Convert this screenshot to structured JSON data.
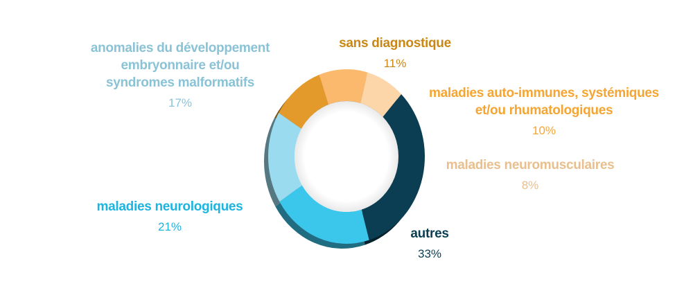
{
  "chart_data": {
    "type": "pie",
    "variant": "donut",
    "title": "",
    "slices": [
      {
        "label": "sans diagnostique",
        "label_lines": [
          "sans diagnostique"
        ],
        "value": 11,
        "display": "11%",
        "color": "#e49a2b",
        "label_color": "#c98716"
      },
      {
        "label": "maladies auto-immunes, systémiques et/ou rhumatologiques",
        "label_lines": [
          "maladies auto-immunes, systémiques",
          "et/ou rhumatologiques"
        ],
        "value": 10,
        "display": "10%",
        "color": "#fbb96e",
        "label_color": "#f4a532"
      },
      {
        "label": "maladies neuromusculaires",
        "label_lines": [
          "maladies neuromusculaires"
        ],
        "value": 8,
        "display": "8%",
        "color": "#fcd6a9",
        "label_color": "#e9bf8e"
      },
      {
        "label": "autres",
        "label_lines": [
          "autres"
        ],
        "value": 33,
        "display": "33%",
        "color": "#0b3e52",
        "label_color": "#0b3e52"
      },
      {
        "label": "maladies neurologiques",
        "label_lines": [
          "maladies neurologiques"
        ],
        "value": 21,
        "display": "21%",
        "color": "#3bc6ec",
        "label_color": "#1db4df"
      },
      {
        "label": "anomalies du développement embryonnaire et/ou syndromes malformatifs",
        "label_lines": [
          "anomalies du développement",
          "embryonnaire et/ou",
          "syndromes malformatifs"
        ],
        "value": 17,
        "display": "17%",
        "color": "#9bdbef",
        "label_color": "#8ac3d6"
      }
    ],
    "legend": "none",
    "data_labels": "outside"
  }
}
